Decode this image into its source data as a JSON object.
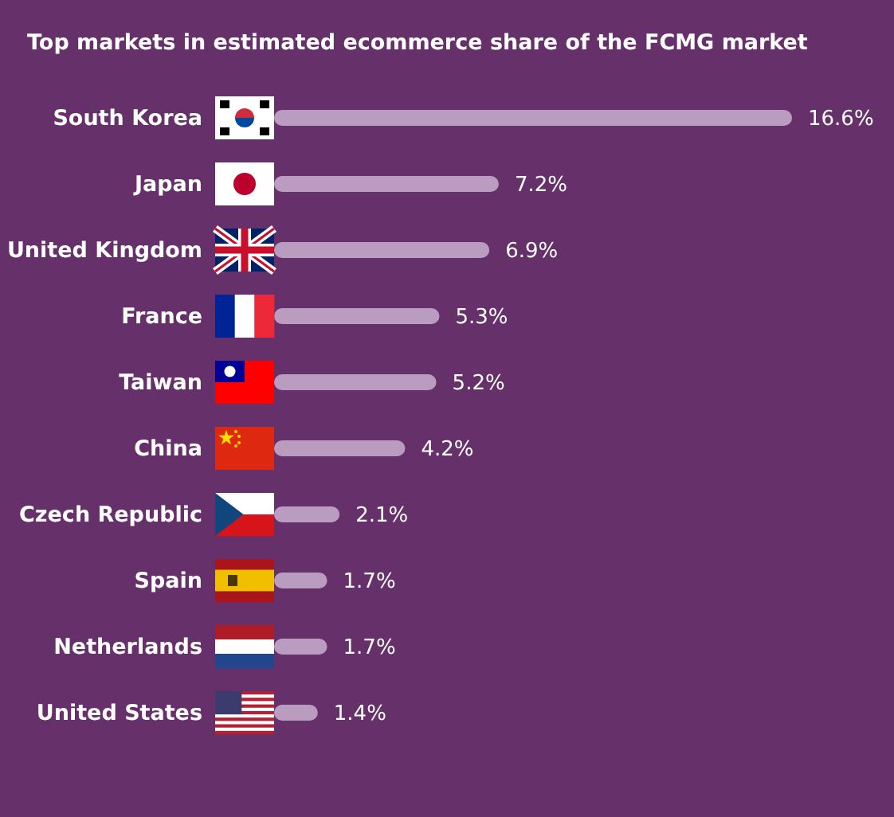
{
  "chart_data": {
    "type": "bar",
    "orientation": "horizontal",
    "title": "Top markets in estimated ecommerce share of the FCMG market",
    "categories": [
      "South Korea",
      "Japan",
      "United Kingdom",
      "France",
      "Taiwan",
      "China",
      "Czech Republic",
      "Spain",
      "Netherlands",
      "United States"
    ],
    "values": [
      16.6,
      7.2,
      6.9,
      5.3,
      5.2,
      4.2,
      2.1,
      1.7,
      1.7,
      1.4
    ],
    "value_labels": [
      "16.6%",
      "7.2%",
      "6.9%",
      "5.3%",
      "5.2%",
      "4.2%",
      "2.1%",
      "1.7%",
      "1.7%",
      "1.4%"
    ],
    "color": "#b99cbf"
  }
}
